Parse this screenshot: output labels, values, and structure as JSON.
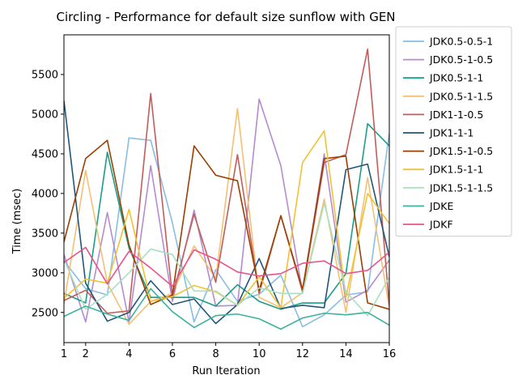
{
  "chart_data": {
    "type": "line",
    "title": "Circling - Performance for default size sunflow with GEN",
    "xlabel": "Run Iteration",
    "ylabel": "Time (msec)",
    "xlim": [
      1,
      16
    ],
    "ylim": [
      2120,
      6000
    ],
    "xticks": [
      2,
      4,
      6,
      8,
      10,
      12,
      14,
      16
    ],
    "yticks": [
      2500,
      3000,
      3500,
      4000,
      4500,
      5000,
      5500
    ],
    "grid": false,
    "legend_position": "outside-right-top",
    "x": [
      1,
      2,
      3,
      4,
      5,
      6,
      7,
      8,
      9,
      10,
      11,
      12,
      13,
      14,
      15,
      16
    ],
    "series": [
      {
        "name": "JDK0.5-0.5-1",
        "color": "#88bde6",
        "values": [
          3150,
          2800,
          2720,
          4700,
          4670,
          3630,
          2380,
          3040,
          2640,
          2730,
          2970,
          2320,
          2470,
          2720,
          2760,
          4760
        ]
      },
      {
        "name": "JDK0.5-1-0.5",
        "color": "#b68bd0",
        "values": [
          3230,
          2380,
          3760,
          2380,
          4350,
          2640,
          3790,
          2580,
          2590,
          5190,
          4350,
          2750,
          4500,
          2630,
          2780,
          3160
        ]
      },
      {
        "name": "JDK0.5-1-1",
        "color": "#1a9e8a",
        "values": [
          2740,
          2620,
          4520,
          3310,
          2690,
          2690,
          2690,
          2580,
          2850,
          2640,
          2540,
          2620,
          2620,
          2990,
          4880,
          4600
        ]
      },
      {
        "name": "JDK0.5-1-1.5",
        "color": "#f5c074",
        "values": [
          2610,
          4290,
          2870,
          2350,
          2640,
          2740,
          3340,
          2930,
          5070,
          2690,
          2560,
          2750,
          3930,
          2500,
          4200,
          2560
        ]
      },
      {
        "name": "JDK1-1-0.5",
        "color": "#c45c59",
        "values": [
          2650,
          2780,
          2490,
          2520,
          5260,
          2700,
          3740,
          2880,
          4490,
          2740,
          3720,
          2760,
          4390,
          4490,
          5820,
          2590
        ]
      },
      {
        "name": "JDK1-1-1",
        "color": "#21567a",
        "values": [
          5170,
          2870,
          2390,
          2500,
          2900,
          2600,
          2670,
          2360,
          2600,
          3180,
          2550,
          2590,
          2560,
          4300,
          4370,
          3200
        ]
      },
      {
        "name": "JDK1.5-1-0.5",
        "color": "#9b3f02",
        "values": [
          3390,
          4440,
          4670,
          3350,
          2600,
          2720,
          4600,
          4230,
          4160,
          2780,
          3720,
          2790,
          4440,
          4470,
          2620,
          2540
        ]
      },
      {
        "name": "JDK1.5-1-1",
        "color": "#f1c232",
        "values": [
          2680,
          2920,
          2870,
          3800,
          2640,
          2700,
          2840,
          2760,
          2590,
          2950,
          2560,
          4390,
          4790,
          2690,
          4000,
          3620
        ]
      },
      {
        "name": "JDK1.5-1-1.5",
        "color": "#a8e0c0",
        "values": [
          3170,
          2540,
          2730,
          3000,
          3300,
          3230,
          2770,
          2770,
          2590,
          2810,
          2740,
          2740,
          3880,
          2760,
          2460,
          2940
        ]
      },
      {
        "name": "JDKE",
        "color": "#3bb39c",
        "values": [
          2450,
          2580,
          2480,
          2400,
          2800,
          2510,
          2310,
          2460,
          2480,
          2420,
          2290,
          2430,
          2490,
          2470,
          2500,
          2340
        ]
      },
      {
        "name": "JDKF",
        "color": "#e8548a",
        "values": [
          3130,
          3320,
          2860,
          3270,
          3060,
          2830,
          3290,
          3170,
          3010,
          2960,
          2990,
          3120,
          3150,
          2990,
          3030,
          3260
        ]
      }
    ]
  }
}
